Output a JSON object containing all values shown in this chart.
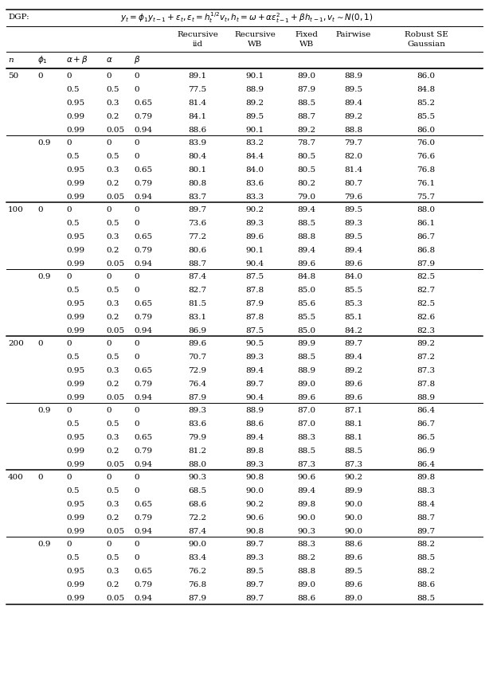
{
  "dgp_label": "DGP:",
  "dgp_formula": "$y_t = \\phi_1 y_{t-1} + \\varepsilon_t, \\varepsilon_t = h_t^{1/2} v_t, h_t = \\omega + \\alpha \\varepsilon_{t-1}^2 + \\beta h_{t-1}, v_t \\sim N(0,1)$",
  "col_headers_line1": [
    "Recursive",
    "Recursive",
    "Fixed",
    "Pairwise",
    "Robust SE"
  ],
  "col_headers_line2": [
    "iid",
    "WB",
    "WB",
    "",
    "Gaussian"
  ],
  "param_header_texts": [
    "n",
    "$\\phi_1$",
    "$\\alpha+\\beta$",
    "$\\alpha$",
    "$\\beta$"
  ],
  "rows": [
    [
      "50",
      "0",
      "0",
      "0",
      "0",
      "89.1",
      "90.1",
      "89.0",
      "88.9",
      "86.0"
    ],
    [
      "",
      "",
      "0.5",
      "0.5",
      "0",
      "77.5",
      "88.9",
      "87.9",
      "89.5",
      "84.8"
    ],
    [
      "",
      "",
      "0.95",
      "0.3",
      "0.65",
      "81.4",
      "89.2",
      "88.5",
      "89.4",
      "85.2"
    ],
    [
      "",
      "",
      "0.99",
      "0.2",
      "0.79",
      "84.1",
      "89.5",
      "88.7",
      "89.2",
      "85.5"
    ],
    [
      "",
      "",
      "0.99",
      "0.05",
      "0.94",
      "88.6",
      "90.1",
      "89.2",
      "88.8",
      "86.0"
    ],
    [
      "",
      "0.9",
      "0",
      "0",
      "0",
      "83.9",
      "83.2",
      "78.7",
      "79.7",
      "76.0"
    ],
    [
      "",
      "",
      "0.5",
      "0.5",
      "0",
      "80.4",
      "84.4",
      "80.5",
      "82.0",
      "76.6"
    ],
    [
      "",
      "",
      "0.95",
      "0.3",
      "0.65",
      "80.1",
      "84.0",
      "80.5",
      "81.4",
      "76.8"
    ],
    [
      "",
      "",
      "0.99",
      "0.2",
      "0.79",
      "80.8",
      "83.6",
      "80.2",
      "80.7",
      "76.1"
    ],
    [
      "",
      "",
      "0.99",
      "0.05",
      "0.94",
      "83.7",
      "83.3",
      "79.0",
      "79.6",
      "75.7"
    ],
    [
      "100",
      "0",
      "0",
      "0",
      "0",
      "89.7",
      "90.2",
      "89.4",
      "89.5",
      "88.0"
    ],
    [
      "",
      "",
      "0.5",
      "0.5",
      "0",
      "73.6",
      "89.3",
      "88.5",
      "89.3",
      "86.1"
    ],
    [
      "",
      "",
      "0.95",
      "0.3",
      "0.65",
      "77.2",
      "89.6",
      "88.8",
      "89.5",
      "86.7"
    ],
    [
      "",
      "",
      "0.99",
      "0.2",
      "0.79",
      "80.6",
      "90.1",
      "89.4",
      "89.4",
      "86.8"
    ],
    [
      "",
      "",
      "0.99",
      "0.05",
      "0.94",
      "88.7",
      "90.4",
      "89.6",
      "89.6",
      "87.9"
    ],
    [
      "",
      "0.9",
      "0",
      "0",
      "0",
      "87.4",
      "87.5",
      "84.8",
      "84.0",
      "82.5"
    ],
    [
      "",
      "",
      "0.5",
      "0.5",
      "0",
      "82.7",
      "87.8",
      "85.0",
      "85.5",
      "82.7"
    ],
    [
      "",
      "",
      "0.95",
      "0.3",
      "0.65",
      "81.5",
      "87.9",
      "85.6",
      "85.3",
      "82.5"
    ],
    [
      "",
      "",
      "0.99",
      "0.2",
      "0.79",
      "83.1",
      "87.8",
      "85.5",
      "85.1",
      "82.6"
    ],
    [
      "",
      "",
      "0.99",
      "0.05",
      "0.94",
      "86.9",
      "87.5",
      "85.0",
      "84.2",
      "82.3"
    ],
    [
      "200",
      "0",
      "0",
      "0",
      "0",
      "89.6",
      "90.5",
      "89.9",
      "89.7",
      "89.2"
    ],
    [
      "",
      "",
      "0.5",
      "0.5",
      "0",
      "70.7",
      "89.3",
      "88.5",
      "89.4",
      "87.2"
    ],
    [
      "",
      "",
      "0.95",
      "0.3",
      "0.65",
      "72.9",
      "89.4",
      "88.9",
      "89.2",
      "87.3"
    ],
    [
      "",
      "",
      "0.99",
      "0.2",
      "0.79",
      "76.4",
      "89.7",
      "89.0",
      "89.6",
      "87.8"
    ],
    [
      "",
      "",
      "0.99",
      "0.05",
      "0.94",
      "87.9",
      "90.4",
      "89.6",
      "89.6",
      "88.9"
    ],
    [
      "",
      "0.9",
      "0",
      "0",
      "0",
      "89.3",
      "88.9",
      "87.0",
      "87.1",
      "86.4"
    ],
    [
      "",
      "",
      "0.5",
      "0.5",
      "0",
      "83.6",
      "88.6",
      "87.0",
      "88.1",
      "86.7"
    ],
    [
      "",
      "",
      "0.95",
      "0.3",
      "0.65",
      "79.9",
      "89.4",
      "88.3",
      "88.1",
      "86.5"
    ],
    [
      "",
      "",
      "0.99",
      "0.2",
      "0.79",
      "81.2",
      "89.8",
      "88.5",
      "88.5",
      "86.9"
    ],
    [
      "",
      "",
      "0.99",
      "0.05",
      "0.94",
      "88.0",
      "89.3",
      "87.3",
      "87.3",
      "86.4"
    ],
    [
      "400",
      "0",
      "0",
      "0",
      "0",
      "90.3",
      "90.8",
      "90.6",
      "90.2",
      "89.8"
    ],
    [
      "",
      "",
      "0.5",
      "0.5",
      "0",
      "68.5",
      "90.0",
      "89.4",
      "89.9",
      "88.3"
    ],
    [
      "",
      "",
      "0.95",
      "0.3",
      "0.65",
      "68.6",
      "90.2",
      "89.8",
      "90.0",
      "88.4"
    ],
    [
      "",
      "",
      "0.99",
      "0.2",
      "0.79",
      "72.2",
      "90.6",
      "90.0",
      "90.0",
      "88.7"
    ],
    [
      "",
      "",
      "0.99",
      "0.05",
      "0.94",
      "87.4",
      "90.8",
      "90.3",
      "90.0",
      "89.7"
    ],
    [
      "",
      "0.9",
      "0",
      "0",
      "0",
      "90.0",
      "89.7",
      "88.3",
      "88.6",
      "88.2"
    ],
    [
      "",
      "",
      "0.5",
      "0.5",
      "0",
      "83.4",
      "89.3",
      "88.2",
      "89.6",
      "88.5"
    ],
    [
      "",
      "",
      "0.95",
      "0.3",
      "0.65",
      "76.2",
      "89.5",
      "88.8",
      "89.5",
      "88.2"
    ],
    [
      "",
      "",
      "0.99",
      "0.2",
      "0.79",
      "76.8",
      "89.7",
      "89.0",
      "89.6",
      "88.6"
    ],
    [
      "",
      "",
      "0.99",
      "0.05",
      "0.94",
      "87.9",
      "89.7",
      "88.6",
      "89.0",
      "88.5"
    ]
  ],
  "thick_line_rows": [
    0,
    10,
    20,
    30
  ],
  "phi_separator_rows": [
    5,
    15,
    25,
    35
  ],
  "background_color": "#ffffff",
  "text_color": "#000000",
  "font_size": 7.5
}
